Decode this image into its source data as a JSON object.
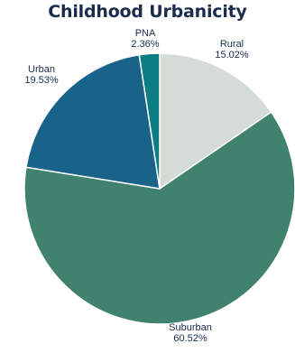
{
  "chart_data": {
    "type": "pie",
    "title": "Childhood Urbanicity",
    "slices": [
      {
        "label": "Rural",
        "value": 15.02,
        "display": "15.02%",
        "color": "#d5dcd6"
      },
      {
        "label": "Suburban",
        "value": 60.52,
        "display": "60.52%",
        "color": "#40826d"
      },
      {
        "label": "Urban",
        "value": 19.53,
        "display": "19.53%",
        "color": "#18638a"
      },
      {
        "label": "PNA",
        "value": 2.36,
        "display": "2.36%",
        "color": "#0c7d82"
      }
    ],
    "start_angle": "12 o'clock",
    "direction": "clockwise"
  }
}
